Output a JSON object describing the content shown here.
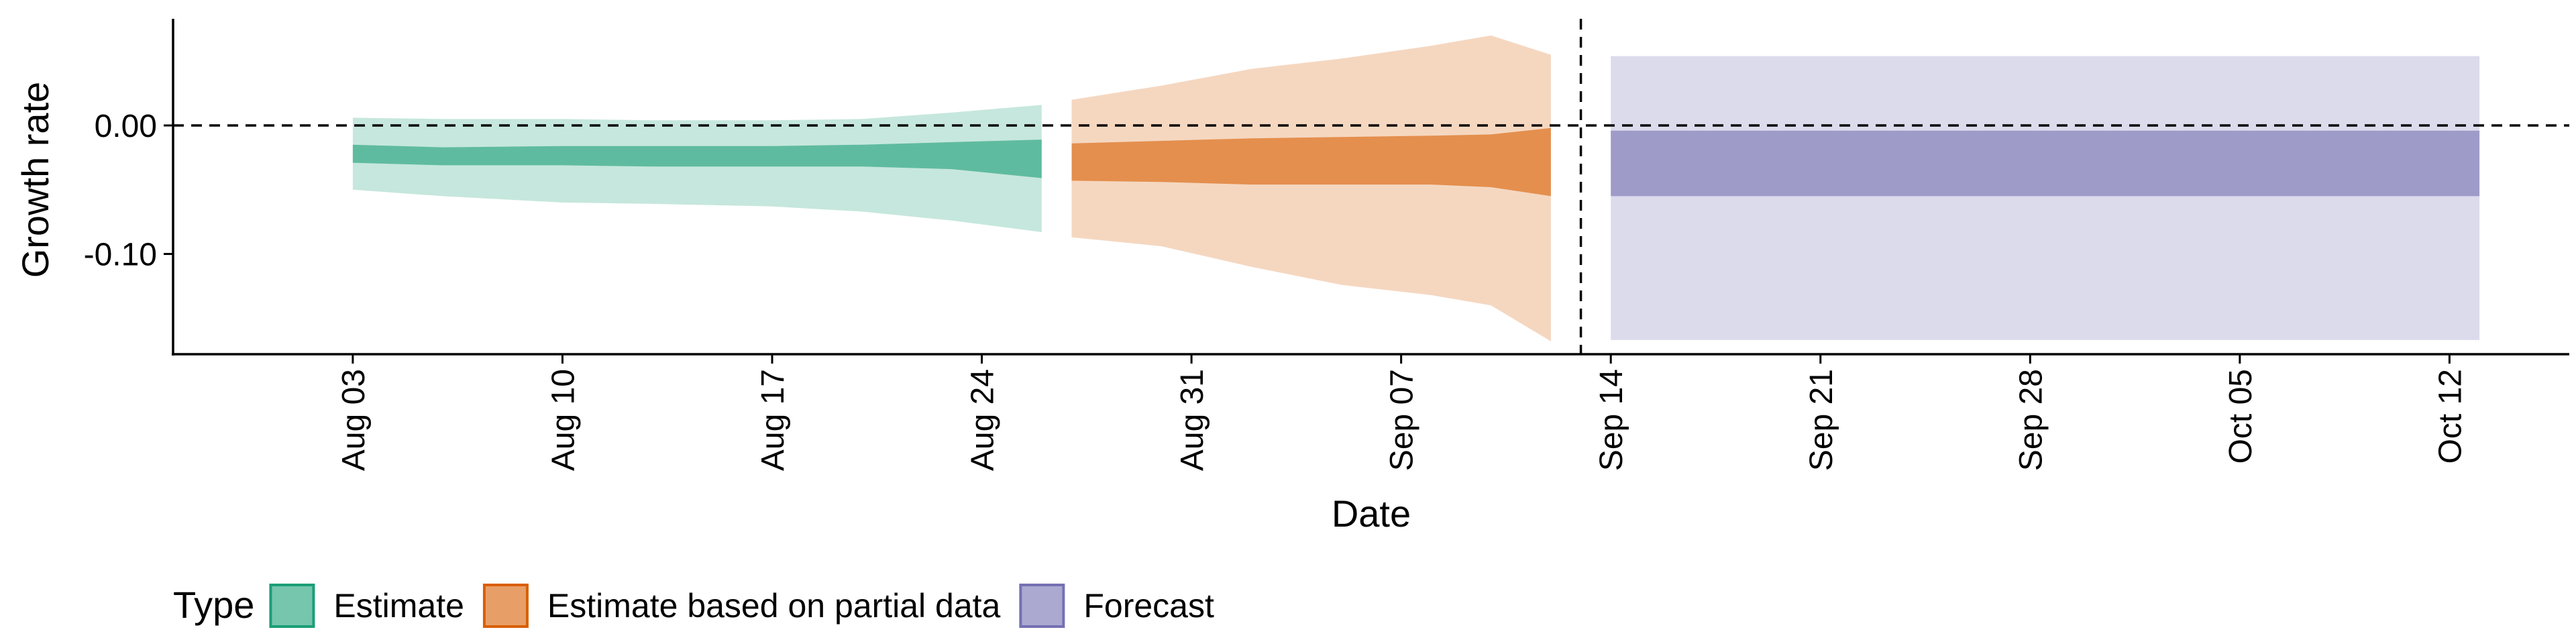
{
  "chart_data": {
    "type": "area",
    "xlabel": "Date",
    "ylabel": "Growth rate",
    "x_range": [
      "2020-07-28",
      "2020-10-16"
    ],
    "ylim": [
      -0.178,
      0.083
    ],
    "x_ticks": [
      {
        "date": "2020-08-03",
        "label": "Aug 03"
      },
      {
        "date": "2020-08-10",
        "label": "Aug 10"
      },
      {
        "date": "2020-08-17",
        "label": "Aug 17"
      },
      {
        "date": "2020-08-24",
        "label": "Aug 24"
      },
      {
        "date": "2020-08-31",
        "label": "Aug 31"
      },
      {
        "date": "2020-09-07",
        "label": "Sep 07"
      },
      {
        "date": "2020-09-14",
        "label": "Sep 14"
      },
      {
        "date": "2020-09-21",
        "label": "Sep 21"
      },
      {
        "date": "2020-09-28",
        "label": "Sep 28"
      },
      {
        "date": "2020-10-05",
        "label": "Oct 05"
      },
      {
        "date": "2020-10-12",
        "label": "Oct 12"
      }
    ],
    "y_ticks": [
      {
        "value": 0.0,
        "label": "0.00"
      },
      {
        "value": -0.1,
        "label": "-0.10"
      }
    ],
    "reference_lines": {
      "horizontal_y": 0.0,
      "vertical_date": "2020-09-13"
    },
    "grid": false,
    "legend": {
      "title": "Type",
      "position": "bottom-left"
    },
    "series": [
      {
        "name": "Estimate",
        "color": "#1b9e77",
        "points": [
          {
            "x": "2020-08-03",
            "lo90": -0.05,
            "lo50": -0.029,
            "hi50": -0.015,
            "hi90": 0.006
          },
          {
            "x": "2020-08-06",
            "lo90": -0.055,
            "lo50": -0.031,
            "hi50": -0.017,
            "hi90": 0.005
          },
          {
            "x": "2020-08-10",
            "lo90": -0.06,
            "lo50": -0.031,
            "hi50": -0.016,
            "hi90": 0.005
          },
          {
            "x": "2020-08-13",
            "lo90": -0.061,
            "lo50": -0.032,
            "hi50": -0.016,
            "hi90": 0.004
          },
          {
            "x": "2020-08-17",
            "lo90": -0.063,
            "lo50": -0.032,
            "hi50": -0.016,
            "hi90": 0.004
          },
          {
            "x": "2020-08-20",
            "lo90": -0.067,
            "lo50": -0.032,
            "hi50": -0.015,
            "hi90": 0.005
          },
          {
            "x": "2020-08-23",
            "lo90": -0.074,
            "lo50": -0.034,
            "hi50": -0.013,
            "hi90": 0.01
          },
          {
            "x": "2020-08-26",
            "lo90": -0.083,
            "lo50": -0.041,
            "hi50": -0.011,
            "hi90": 0.016
          }
        ]
      },
      {
        "name": "Estimate based on partial data",
        "color": "#d95f02",
        "points": [
          {
            "x": "2020-08-27",
            "lo90": -0.087,
            "lo50": -0.043,
            "hi50": -0.014,
            "hi90": 0.02
          },
          {
            "x": "2020-08-30",
            "lo90": -0.094,
            "lo50": -0.044,
            "hi50": -0.012,
            "hi90": 0.031
          },
          {
            "x": "2020-09-02",
            "lo90": -0.11,
            "lo50": -0.046,
            "hi50": -0.01,
            "hi90": 0.044
          },
          {
            "x": "2020-09-05",
            "lo90": -0.124,
            "lo50": -0.046,
            "hi50": -0.009,
            "hi90": 0.052
          },
          {
            "x": "2020-09-08",
            "lo90": -0.132,
            "lo50": -0.046,
            "hi50": -0.008,
            "hi90": 0.062
          },
          {
            "x": "2020-09-10",
            "lo90": -0.14,
            "lo50": -0.048,
            "hi50": -0.007,
            "hi90": 0.07
          },
          {
            "x": "2020-09-12",
            "lo90": -0.168,
            "lo50": -0.055,
            "hi50": -0.002,
            "hi90": 0.055
          }
        ]
      },
      {
        "name": "Forecast",
        "color": "#7570b3",
        "points": [
          {
            "x": "2020-09-14",
            "lo90": -0.167,
            "lo50": -0.055,
            "hi50": -0.004,
            "hi90": 0.054
          },
          {
            "x": "2020-10-13",
            "lo90": -0.167,
            "lo50": -0.055,
            "hi50": -0.004,
            "hi90": 0.054
          }
        ]
      }
    ]
  }
}
